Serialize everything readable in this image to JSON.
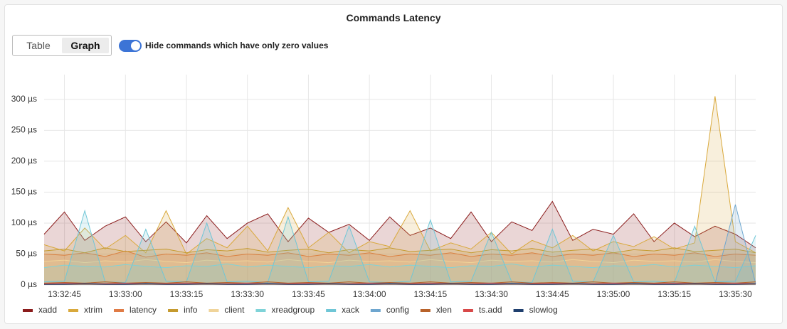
{
  "header": {
    "title": "Commands Latency"
  },
  "controls": {
    "tabs": [
      "Table",
      "Graph"
    ],
    "active_tab": 1,
    "toggle_label": "Hide commands which have only zero values",
    "toggle_on": true
  },
  "chart_data": {
    "type": "area",
    "x": [
      "13:32:40",
      "13:32:45",
      "13:32:50",
      "13:32:55",
      "13:33:00",
      "13:33:05",
      "13:33:10",
      "13:33:15",
      "13:33:20",
      "13:33:25",
      "13:33:30",
      "13:33:35",
      "13:33:40",
      "13:33:45",
      "13:33:50",
      "13:33:55",
      "13:34:00",
      "13:34:05",
      "13:34:10",
      "13:34:15",
      "13:34:20",
      "13:34:25",
      "13:34:30",
      "13:34:35",
      "13:34:40",
      "13:34:45",
      "13:34:50",
      "13:34:55",
      "13:35:00",
      "13:35:05",
      "13:35:10",
      "13:35:15",
      "13:35:20",
      "13:35:25",
      "13:35:30",
      "13:35:35"
    ],
    "xlim": [
      "13:32:40",
      "13:35:35"
    ],
    "xticks": [
      "13:32:45",
      "13:33:00",
      "13:33:15",
      "13:33:30",
      "13:33:45",
      "13:34:00",
      "13:34:15",
      "13:34:30",
      "13:34:45",
      "13:35:00",
      "13:35:15",
      "13:35:30"
    ],
    "ylim": [
      0,
      340
    ],
    "yticks": [
      {
        "value": 0,
        "label": "0 µs"
      },
      {
        "value": 50,
        "label": "50 µs"
      },
      {
        "value": 100,
        "label": "100 µs"
      },
      {
        "value": 150,
        "label": "150 µs"
      },
      {
        "value": 200,
        "label": "200 µs"
      },
      {
        "value": 250,
        "label": "250 µs"
      },
      {
        "value": 300,
        "label": "300 µs"
      }
    ],
    "grid": true,
    "legend": "bottom",
    "series": [
      {
        "name": "xadd",
        "color": "#8b1c1c",
        "values": [
          82,
          118,
          72,
          95,
          110,
          70,
          102,
          68,
          112,
          75,
          100,
          115,
          70,
          108,
          85,
          98,
          72,
          110,
          80,
          92,
          75,
          118,
          70,
          102,
          88,
          135,
          72,
          90,
          82,
          115,
          70,
          100,
          78,
          95,
          82,
          60
        ]
      },
      {
        "name": "xtrim",
        "color": "#d9a93c",
        "values": [
          65,
          55,
          92,
          58,
          80,
          52,
          120,
          50,
          75,
          60,
          95,
          55,
          125,
          60,
          85,
          52,
          70,
          62,
          120,
          55,
          68,
          58,
          85,
          50,
          72,
          60,
          80,
          55,
          70,
          62,
          78,
          58,
          68,
          305,
          70,
          52
        ]
      },
      {
        "name": "latency",
        "color": "#e07b45",
        "values": [
          50,
          48,
          52,
          46,
          55,
          45,
          50,
          48,
          52,
          46,
          50,
          48,
          52,
          46,
          50,
          48,
          52,
          46,
          50,
          48,
          52,
          46,
          50,
          48,
          52,
          46,
          50,
          48,
          52,
          46,
          50,
          48,
          52,
          46,
          50,
          48
        ]
      },
      {
        "name": "info",
        "color": "#c59a2e",
        "values": [
          55,
          58,
          52,
          60,
          54,
          56,
          58,
          52,
          57,
          55,
          59,
          53,
          56,
          58,
          52,
          57,
          55,
          60,
          54,
          56,
          58,
          52,
          57,
          55,
          59,
          53,
          56,
          58,
          52,
          57,
          55,
          60,
          54,
          56,
          58,
          52
        ]
      },
      {
        "name": "client",
        "color": "#f0d49a",
        "values": [
          38,
          40,
          36,
          39,
          37,
          41,
          38,
          36,
          40,
          38,
          39,
          37,
          41,
          38,
          36,
          40,
          38,
          39,
          37,
          41,
          38,
          36,
          40,
          38,
          39,
          37,
          41,
          38,
          36,
          40,
          38,
          39,
          37,
          41,
          38,
          36
        ]
      },
      {
        "name": "xreadgroup",
        "color": "#7fd3d8",
        "values": [
          28,
          32,
          30,
          29,
          33,
          30,
          28,
          31,
          30,
          34,
          29,
          32,
          30,
          28,
          31,
          30,
          33,
          29,
          32,
          30,
          28,
          31,
          30,
          34,
          29,
          32,
          30,
          28,
          31,
          30,
          33,
          29,
          32,
          30,
          28,
          31
        ]
      },
      {
        "name": "xack",
        "color": "#6fc6d6",
        "values": [
          5,
          6,
          120,
          5,
          4,
          90,
          6,
          5,
          100,
          5,
          6,
          4,
          110,
          5,
          6,
          95,
          5,
          4,
          6,
          105,
          5,
          6,
          85,
          5,
          4,
          90,
          6,
          5,
          80,
          5,
          6,
          4,
          95,
          5,
          6,
          80
        ]
      },
      {
        "name": "config",
        "color": "#6ea6cf",
        "values": [
          2,
          2,
          3,
          2,
          2,
          3,
          2,
          2,
          3,
          2,
          2,
          3,
          2,
          2,
          3,
          2,
          2,
          3,
          2,
          2,
          3,
          2,
          2,
          3,
          2,
          2,
          3,
          2,
          2,
          3,
          2,
          2,
          3,
          2,
          130,
          2
        ]
      },
      {
        "name": "xlen",
        "color": "#b8622a",
        "values": [
          3,
          4,
          3,
          5,
          3,
          4,
          3,
          5,
          3,
          4,
          3,
          5,
          3,
          4,
          3,
          5,
          3,
          4,
          3,
          5,
          3,
          4,
          3,
          5,
          3,
          4,
          3,
          5,
          3,
          4,
          3,
          5,
          3,
          4,
          3,
          5
        ]
      },
      {
        "name": "ts.add",
        "color": "#d84848",
        "values": [
          2,
          3,
          2,
          2,
          3,
          2,
          2,
          3,
          2,
          2,
          3,
          2,
          2,
          3,
          2,
          2,
          3,
          2,
          2,
          3,
          2,
          2,
          3,
          2,
          2,
          3,
          2,
          2,
          3,
          2,
          2,
          3,
          2,
          2,
          3,
          2
        ]
      },
      {
        "name": "slowlog",
        "color": "#1f3f6e",
        "values": [
          1,
          1,
          2,
          1,
          1,
          2,
          1,
          1,
          2,
          1,
          1,
          2,
          1,
          1,
          2,
          1,
          1,
          2,
          1,
          1,
          2,
          1,
          1,
          2,
          1,
          1,
          2,
          1,
          1,
          2,
          1,
          1,
          2,
          1,
          1,
          2
        ]
      }
    ]
  }
}
